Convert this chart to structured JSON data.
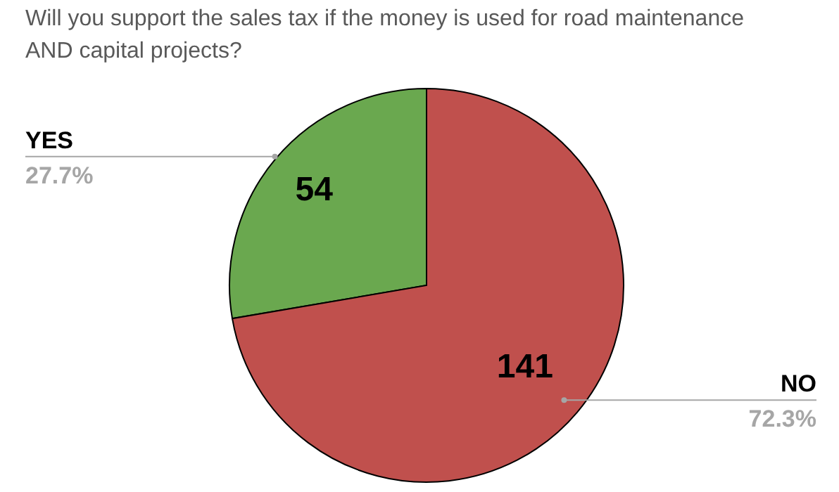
{
  "chart_data": {
    "type": "pie",
    "title": "Will you support the sales tax if the money is used for road maintenance AND capital projects?",
    "categories": [
      "YES",
      "NO"
    ],
    "values": [
      54,
      141
    ],
    "colors": [
      "#6aa84f",
      "#c0504d"
    ],
    "data_labels": true,
    "annotations": [
      "27.7%",
      "72.3%"
    ]
  }
}
